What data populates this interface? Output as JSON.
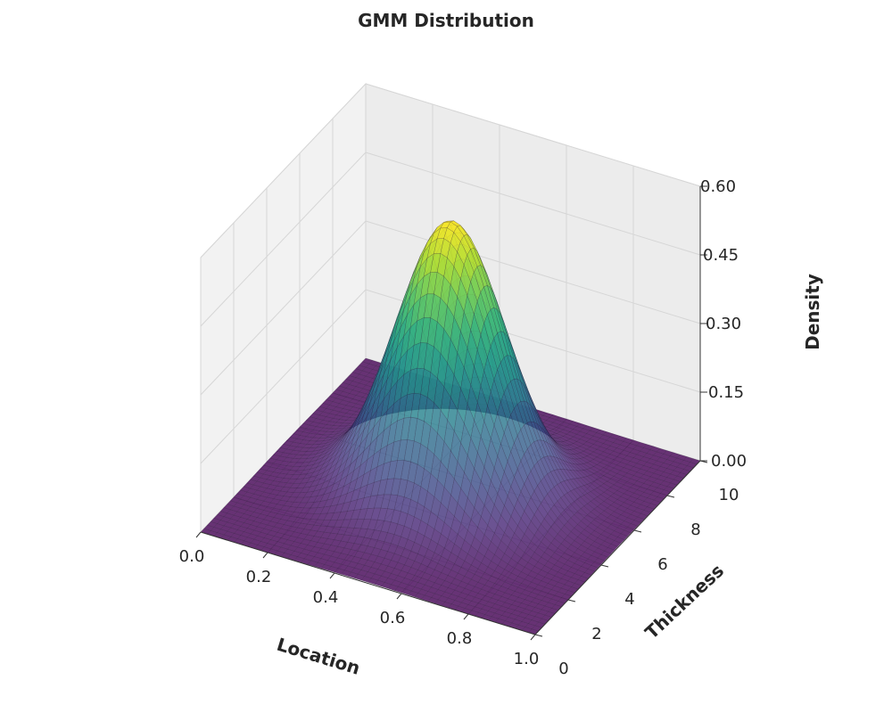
{
  "chart_data": {
    "type": "surface3d",
    "title": "GMM Distribution",
    "xlabel": "Location",
    "ylabel": "Thickness",
    "zlabel": "Density",
    "xlim": [
      0.0,
      1.0
    ],
    "ylim": [
      0,
      10
    ],
    "zlim": [
      0.0,
      0.6
    ],
    "x_ticks": [
      "0.0",
      "0.2",
      "0.4",
      "0.6",
      "0.8",
      "1.0"
    ],
    "y_ticks": [
      "0",
      "2",
      "4",
      "6",
      "8",
      "10"
    ],
    "z_ticks": [
      "0.00",
      "0.15",
      "0.30",
      "0.45",
      "0.60"
    ],
    "colormap": "viridis",
    "grid": true,
    "surface": {
      "function": "gaussian",
      "peak_density": 0.6,
      "mean": {
        "location": 0.5,
        "thickness": 5.0
      },
      "std": {
        "location": 0.15,
        "thickness": 1.5
      }
    },
    "grid_resolution": 50
  }
}
